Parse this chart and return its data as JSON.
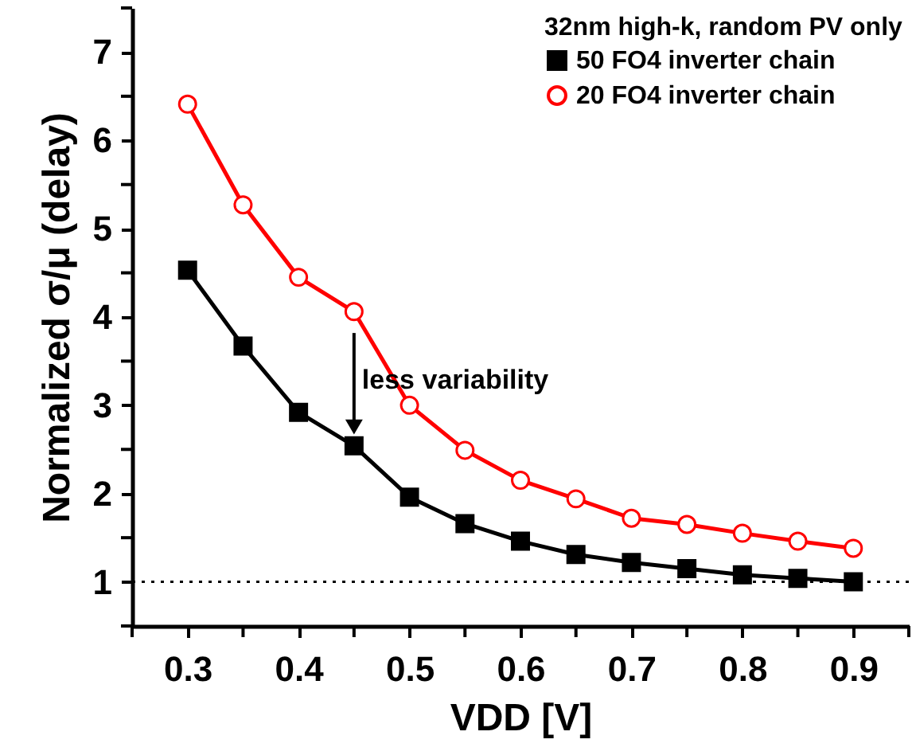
{
  "chart_data": {
    "type": "line",
    "xlabel": "VDD [V]",
    "ylabel": "Normalized σ/μ (delay)",
    "legend_title": "32nm high-k, random PV only",
    "legend": "top right",
    "grid": false,
    "x": [
      0.3,
      0.35,
      0.4,
      0.45,
      0.5,
      0.55,
      0.6,
      0.65,
      0.7,
      0.75,
      0.8,
      0.85,
      0.9
    ],
    "series": [
      {
        "name": "50 FO4 inverter chain",
        "color": "#000000",
        "marker": "square",
        "values": [
          4.53,
          3.67,
          2.92,
          2.54,
          1.96,
          1.66,
          1.46,
          1.31,
          1.22,
          1.15,
          1.08,
          1.04,
          1.0
        ]
      },
      {
        "name": "20 FO4 inverter chain",
        "color": "#ff0000",
        "marker": "circle",
        "values": [
          6.41,
          5.27,
          4.45,
          4.06,
          3.0,
          2.49,
          2.15,
          1.94,
          1.72,
          1.65,
          1.55,
          1.46,
          1.38
        ]
      }
    ],
    "xlim": [
      0.25,
      0.95
    ],
    "xticks": [
      {
        "value": 0.25,
        "label": null
      },
      0.3,
      {
        "value": 0.35,
        "label": null
      },
      0.4,
      {
        "value": 0.45,
        "label": null
      },
      0.5,
      {
        "value": 0.55,
        "label": null
      },
      0.6,
      {
        "value": 0.65,
        "label": null
      },
      0.7,
      {
        "value": 0.75,
        "label": null
      },
      0.8,
      {
        "value": 0.85,
        "label": null
      },
      0.9,
      {
        "value": 0.95,
        "label": null
      }
    ],
    "ylim": [
      0.5,
      7.5
    ],
    "yticks": [
      {
        "value": 0.5,
        "label": null
      },
      1,
      {
        "value": 1.5,
        "label": null
      },
      2,
      {
        "value": 2.5,
        "label": null
      },
      3,
      {
        "value": 3.5,
        "label": null
      },
      4,
      {
        "value": 4.5,
        "label": null
      },
      5,
      {
        "value": 5.5,
        "label": null
      },
      6,
      {
        "value": 6.5,
        "label": null
      },
      7,
      {
        "value": 7.5,
        "label": null
      }
    ],
    "ref_lines": [
      {
        "axis": "y",
        "value": 1,
        "color": "#000000",
        "line_style": "dotted"
      }
    ],
    "annotations": [
      {
        "text": "less variability",
        "x": 0.45,
        "y": 2.7
      }
    ]
  }
}
